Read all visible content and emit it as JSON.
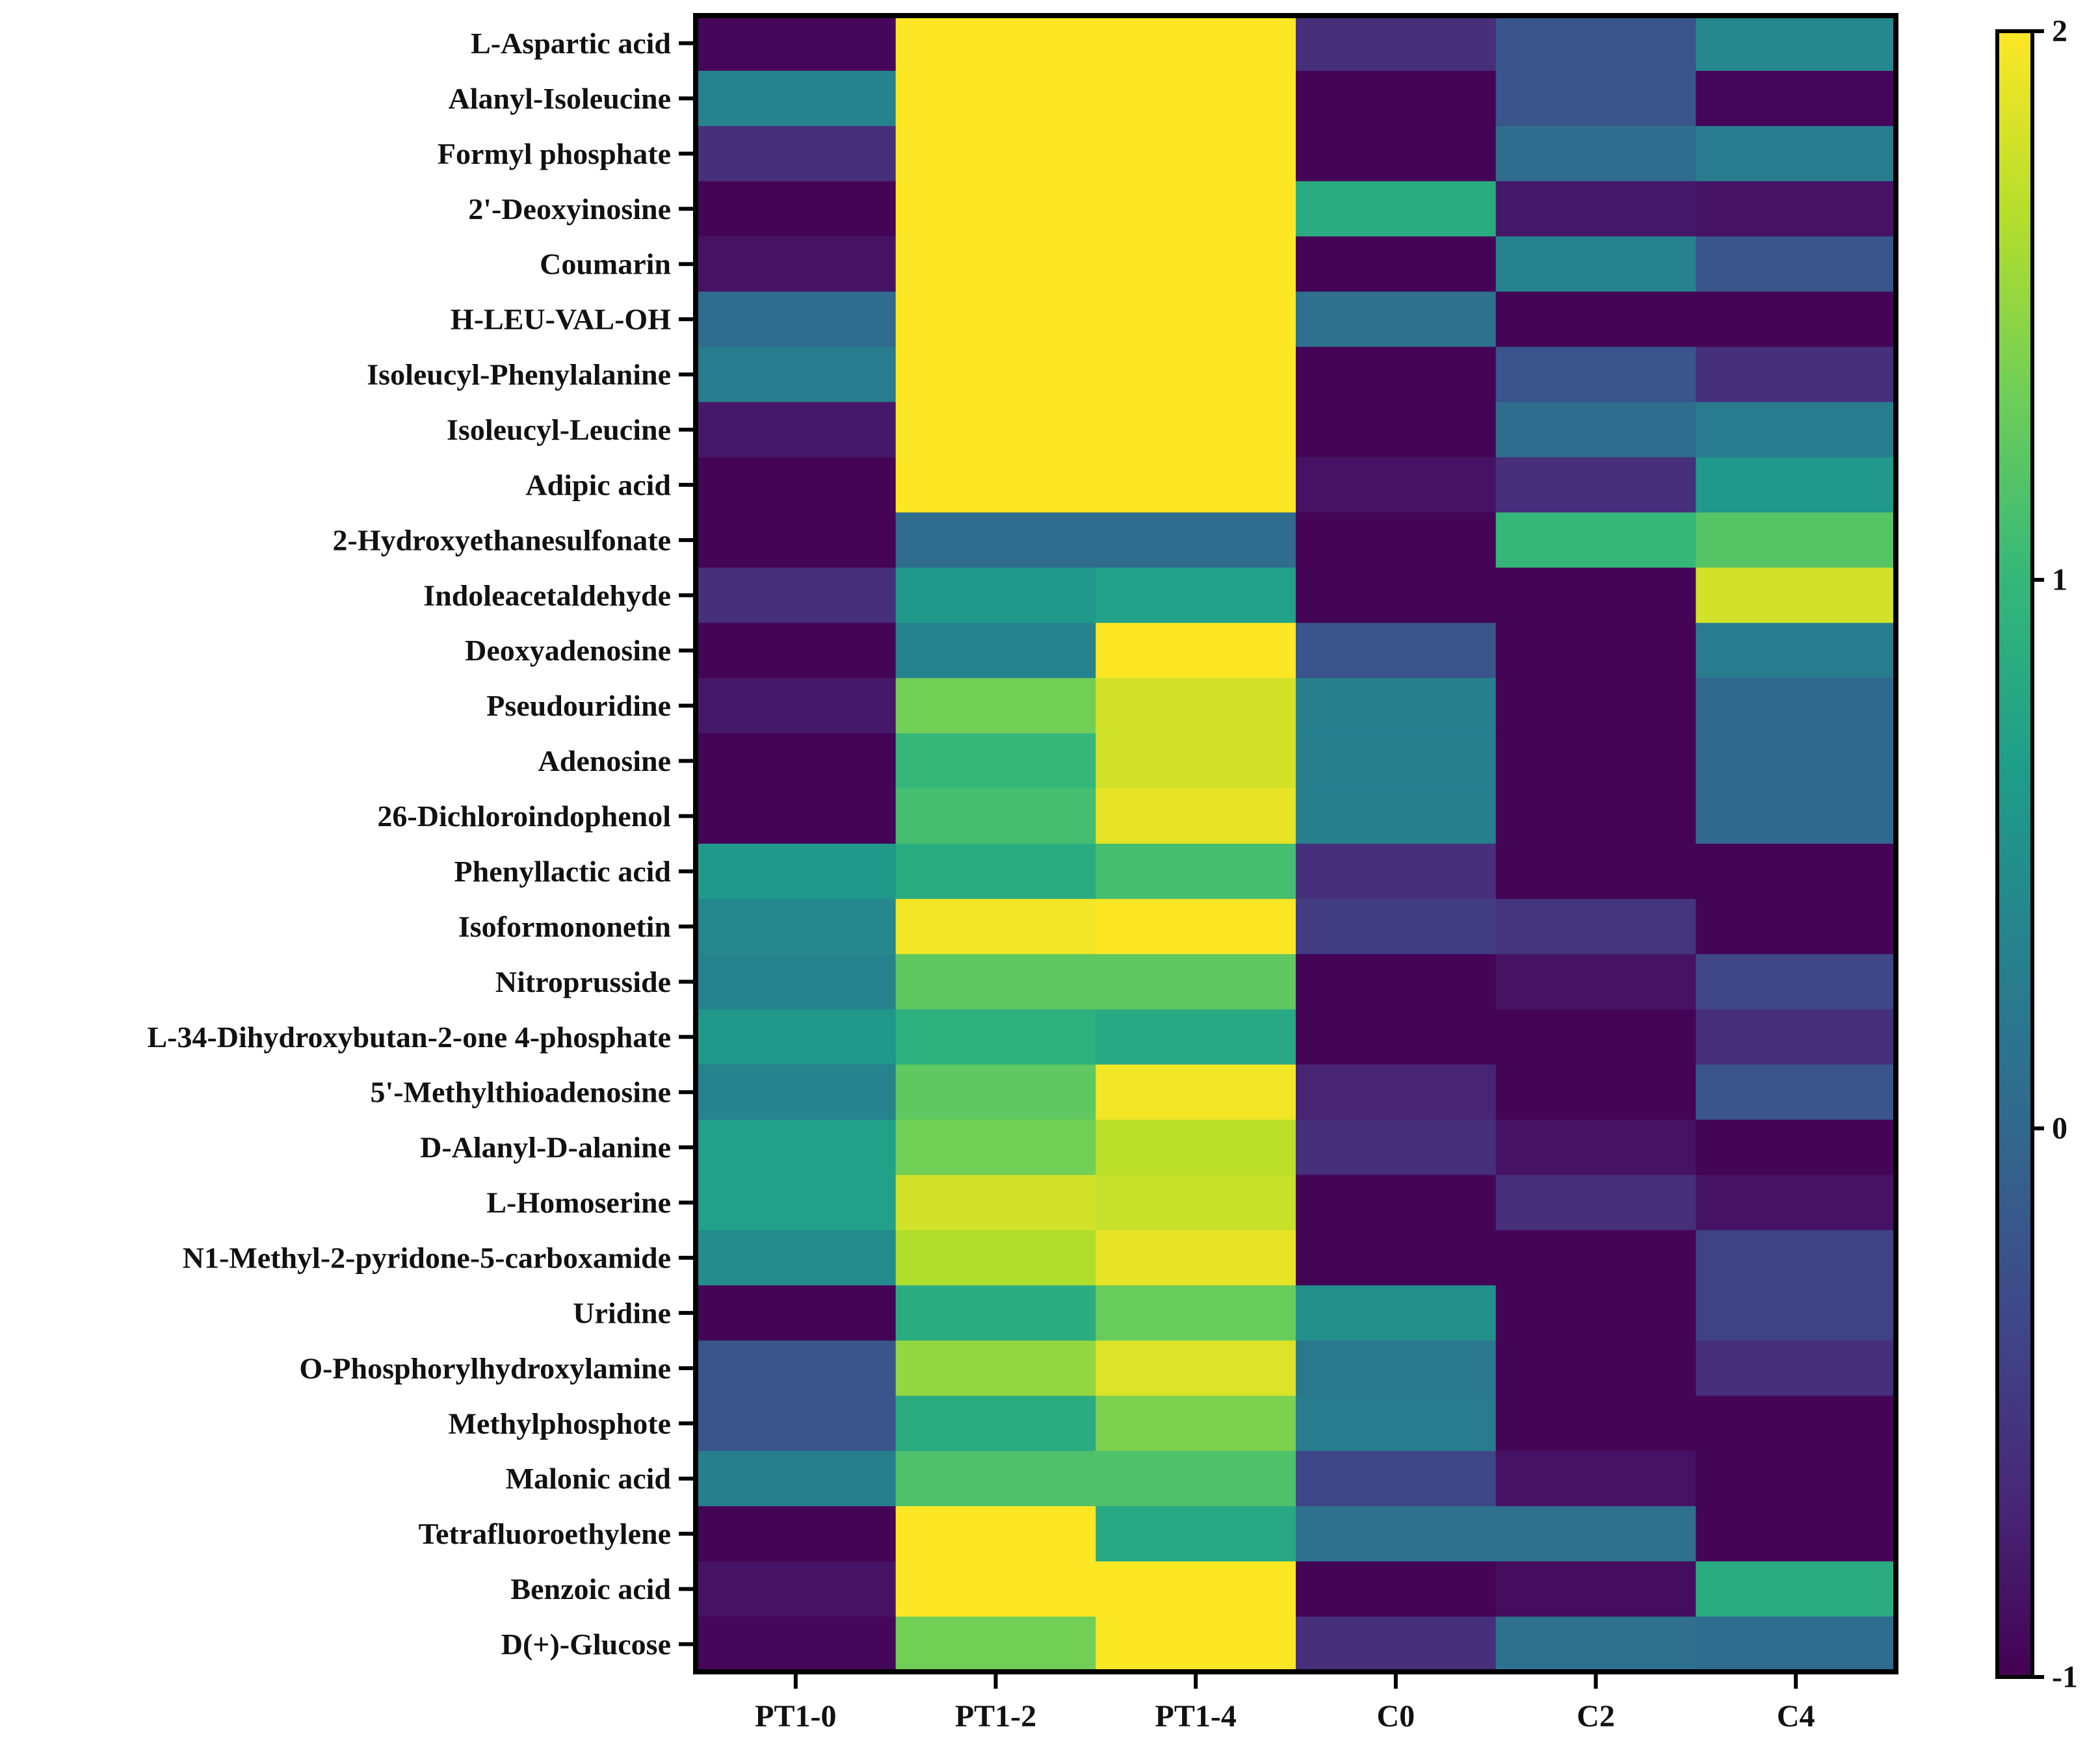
{
  "chart_data": {
    "type": "heatmap",
    "title": "",
    "xlabel": "",
    "ylabel": "",
    "columns": [
      "PT1-0",
      "PT1-2",
      "PT1-4",
      "C0",
      "C2",
      "C4"
    ],
    "rows": [
      "L-Aspartic acid",
      "Alanyl-Isoleucine",
      "Formyl phosphate",
      "2'-Deoxyinosine",
      "Coumarin",
      "H-LEU-VAL-OH",
      "Isoleucyl-Phenylalanine",
      "Isoleucyl-Leucine",
      "Adipic acid",
      "2-Hydroxyethanesulfonate",
      "Indoleacetaldehyde",
      "Deoxyadenosine",
      "Pseudouridine",
      "Adenosine",
      "26-Dichloroindophenol",
      "Phenyllactic acid",
      "Isoformononetin",
      "Nitroprusside",
      "L-34-Dihydroxybutan-2-one 4-phosphate",
      "5'-Methylthioadenosine",
      "D-Alanyl-D-alanine",
      "L-Homoserine",
      "N1-Methyl-2-pyridone-5-carboxamide",
      "Uridine",
      "O-Phosphorylhydroxylamine",
      "Methylphosphote",
      "Malonic acid",
      "Tetrafluoroethylene",
      "Benzoic acid",
      "D(+)-Glucose"
    ],
    "values": [
      [
        -0.95,
        2.0,
        2.0,
        -0.6,
        -0.2,
        0.4
      ],
      [
        0.35,
        2.0,
        2.0,
        -0.97,
        -0.2,
        -0.95
      ],
      [
        -0.6,
        2.0,
        2.0,
        -0.97,
        0.05,
        0.25
      ],
      [
        -0.97,
        2.0,
        2.0,
        0.85,
        -0.8,
        -0.85
      ],
      [
        -0.85,
        2.0,
        2.0,
        -0.97,
        0.35,
        -0.2
      ],
      [
        0.05,
        2.0,
        2.0,
        0.1,
        -0.97,
        -0.97
      ],
      [
        0.25,
        2.0,
        2.0,
        -0.97,
        -0.2,
        -0.6
      ],
      [
        -0.8,
        2.0,
        2.0,
        -0.97,
        0.05,
        0.25
      ],
      [
        -0.97,
        2.0,
        2.0,
        -0.85,
        -0.6,
        0.6
      ],
      [
        -0.97,
        0.05,
        0.05,
        -0.97,
        1.0,
        1.2
      ],
      [
        -0.6,
        0.6,
        0.7,
        -0.97,
        -0.97,
        1.8
      ],
      [
        -0.97,
        0.35,
        2.0,
        -0.2,
        -0.97,
        0.25
      ],
      [
        -0.8,
        1.35,
        1.8,
        0.3,
        -0.97,
        0.0
      ],
      [
        -0.97,
        1.0,
        1.8,
        0.3,
        -0.97,
        0.0
      ],
      [
        -0.97,
        1.1,
        1.9,
        0.3,
        -0.97,
        0.0
      ],
      [
        0.6,
        0.85,
        1.1,
        -0.6,
        -0.97,
        -0.97
      ],
      [
        0.4,
        1.95,
        2.0,
        -0.45,
        -0.55,
        -0.97
      ],
      [
        0.35,
        1.25,
        1.25,
        -0.97,
        -0.85,
        -0.35
      ],
      [
        0.6,
        0.9,
        0.8,
        -0.97,
        -0.97,
        -0.6
      ],
      [
        0.35,
        1.25,
        1.95,
        -0.7,
        -0.97,
        -0.2
      ],
      [
        0.7,
        1.35,
        1.7,
        -0.6,
        -0.85,
        -0.97
      ],
      [
        0.7,
        1.8,
        1.75,
        -0.97,
        -0.6,
        -0.85
      ],
      [
        0.45,
        1.65,
        1.9,
        -0.97,
        -0.97,
        -0.4
      ],
      [
        -0.97,
        0.85,
        1.3,
        0.5,
        -0.97,
        -0.4
      ],
      [
        -0.2,
        1.5,
        1.85,
        0.2,
        -0.97,
        -0.6
      ],
      [
        -0.2,
        0.85,
        1.4,
        0.25,
        -0.97,
        -0.97
      ],
      [
        0.3,
        1.15,
        1.15,
        -0.35,
        -0.85,
        -0.97
      ],
      [
        -0.97,
        2.0,
        0.8,
        0.1,
        0.1,
        -0.97
      ],
      [
        -0.85,
        2.0,
        2.0,
        -0.97,
        -0.9,
        0.85
      ],
      [
        -0.95,
        1.35,
        2.0,
        -0.6,
        0.1,
        0.05
      ]
    ],
    "colorbar": {
      "min": -1,
      "max": 2,
      "ticks": [
        2,
        1,
        0,
        -1
      ],
      "tick_labels": [
        "2",
        "1",
        "0",
        "-1"
      ]
    },
    "colormap": "viridis",
    "colormap_stops": [
      "#440154",
      "#482878",
      "#3e4989",
      "#31688e",
      "#26828e",
      "#1f9e89",
      "#35b779",
      "#6ece58",
      "#b5de2b",
      "#fde725"
    ],
    "grid": false,
    "legend": "colorbar at right"
  }
}
